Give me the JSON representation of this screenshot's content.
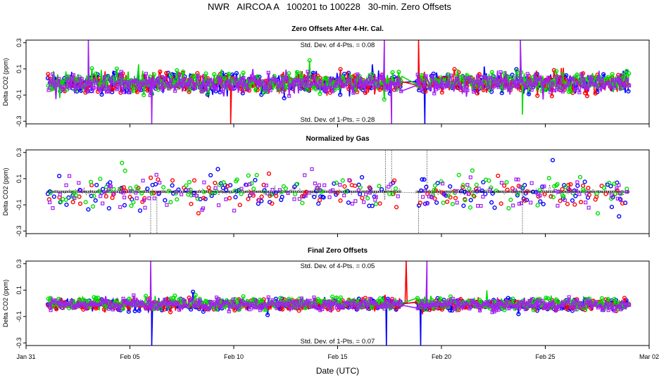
{
  "title": "NWR   AIRCOA A   100201 to 100228   30-min. Zero Offsets",
  "colors": {
    "series_blue": "#0000ff",
    "series_red": "#ff0000",
    "series_green": "#00dd00",
    "series_purple": "#a020f0",
    "dotted_line": "#000000",
    "axis": "#000000",
    "background": "#ffffff"
  },
  "chart_data": [
    {
      "type": "line",
      "id": "zero-offsets-after-cal",
      "title": "Zero Offsets After 4-Hr. Cal.",
      "ylabel": "Delta CO2 (ppm)",
      "xlabel": "",
      "ylim": [
        -0.32,
        0.32
      ],
      "yticks": [
        -0.3,
        -0.1,
        0.1,
        0.3
      ],
      "ytick_labels": [
        "-0.3",
        "-0.1",
        "0.1",
        "0.3"
      ],
      "annotations": [
        "Std. Dev. of 4-Pts. = 0.08",
        "Std. Dev. of 1-Pts. = 0.28"
      ],
      "spread": 0.085,
      "series": [
        {
          "name": "blue",
          "color": "#0000ff",
          "marker": "circle"
        },
        {
          "name": "red",
          "color": "#ff0000",
          "marker": "circle"
        },
        {
          "name": "green",
          "color": "#00dd00",
          "marker": "circle"
        },
        {
          "name": "purple",
          "color": "#a020f0",
          "marker": "square"
        }
      ],
      "spikes": [
        {
          "x": 3.0,
          "y": 0.32,
          "series": "purple"
        },
        {
          "x": 6.05,
          "y": -0.32,
          "series": "purple"
        },
        {
          "x": 9.85,
          "y": -0.32,
          "series": "red"
        },
        {
          "x": 17.25,
          "y": 0.32,
          "series": "purple"
        },
        {
          "x": 17.6,
          "y": -0.32,
          "series": "purple"
        },
        {
          "x": 18.9,
          "y": 0.32,
          "series": "red"
        },
        {
          "x": 19.2,
          "y": -0.32,
          "series": "blue"
        },
        {
          "x": 23.8,
          "y": 0.32,
          "series": "purple"
        },
        {
          "x": 23.9,
          "y": -0.25,
          "series": "green"
        }
      ],
      "gaps": [
        [
          18.1,
          18.8
        ],
        [
          19.3,
          19.4
        ]
      ]
    },
    {
      "type": "scatter",
      "id": "normalized-by-gas",
      "title": "Normalized by Gas",
      "ylabel": "Delta CO2 (ppm)",
      "xlabel": "",
      "ylim": [
        -0.32,
        0.32
      ],
      "yticks": [
        -0.3,
        -0.1,
        0.1,
        0.3
      ],
      "ytick_labels": [
        "-0.3",
        "-0.1",
        "0.1",
        "0.3"
      ],
      "annotations": [],
      "spread": 0.13,
      "series": [
        {
          "name": "blue",
          "color": "#0000ff",
          "marker": "circle"
        },
        {
          "name": "red",
          "color": "#ff0000",
          "marker": "circle"
        },
        {
          "name": "green",
          "color": "#00dd00",
          "marker": "circle"
        },
        {
          "name": "purple",
          "color": "#a020f0",
          "marker": "square"
        },
        {
          "name": "reference",
          "color": "#000000",
          "marker": "dotted-line",
          "value": 0.0
        }
      ],
      "spikes": [
        {
          "x": 6.0,
          "y": -0.32,
          "series": "reference"
        },
        {
          "x": 6.3,
          "y": -0.32,
          "series": "reference"
        },
        {
          "x": 17.3,
          "y": 0.32,
          "series": "reference"
        },
        {
          "x": 17.6,
          "y": 0.32,
          "series": "reference"
        },
        {
          "x": 18.9,
          "y": -0.32,
          "series": "reference"
        },
        {
          "x": 19.3,
          "y": 0.32,
          "series": "reference"
        },
        {
          "x": 23.9,
          "y": -0.32,
          "series": "reference"
        }
      ],
      "gaps": [
        [
          18.1,
          18.8
        ]
      ]
    },
    {
      "type": "line",
      "id": "final-zero-offsets",
      "title": "Final Zero Offsets",
      "ylabel": "Delta CO2 (ppm)",
      "xlabel": "Date (UTC)",
      "ylim": [
        -0.32,
        0.32
      ],
      "yticks": [
        -0.3,
        -0.1,
        0.1,
        0.3
      ],
      "ytick_labels": [
        "-0.3",
        "-0.1",
        "0.1",
        "0.3"
      ],
      "annotations": [
        "Std. Dev. of 4-Pts. = 0.05",
        "Std. Dev. of 1-Pts. = 0.07"
      ],
      "spread": 0.05,
      "series": [
        {
          "name": "blue",
          "color": "#0000ff",
          "marker": "circle"
        },
        {
          "name": "red",
          "color": "#ff0000",
          "marker": "circle"
        },
        {
          "name": "green",
          "color": "#00dd00",
          "marker": "circle"
        },
        {
          "name": "purple",
          "color": "#a020f0",
          "marker": "square"
        }
      ],
      "spikes": [
        {
          "x": 6.0,
          "y": 0.32,
          "series": "purple"
        },
        {
          "x": 6.05,
          "y": -0.32,
          "series": "blue"
        },
        {
          "x": 17.35,
          "y": -0.32,
          "series": "blue"
        },
        {
          "x": 18.3,
          "y": 0.32,
          "series": "red"
        },
        {
          "x": 19.0,
          "y": -0.32,
          "series": "blue"
        },
        {
          "x": 19.3,
          "y": 0.32,
          "series": "purple"
        }
      ],
      "gaps": [
        [
          18.1,
          18.8
        ]
      ]
    }
  ],
  "x_axis": {
    "label": "Date (UTC)",
    "range_days": [
      0,
      30
    ],
    "data_start_day": 1.05,
    "data_end_day": 29.0,
    "ticks": [
      {
        "day": 0,
        "label": "Jan 31"
      },
      {
        "day": 5,
        "label": "Feb 05"
      },
      {
        "day": 10,
        "label": "Feb 10"
      },
      {
        "day": 15,
        "label": "Feb 15"
      },
      {
        "day": 20,
        "label": "Feb 20"
      },
      {
        "day": 25,
        "label": "Feb 25"
      },
      {
        "day": 30,
        "label": "Mar 02"
      }
    ]
  }
}
